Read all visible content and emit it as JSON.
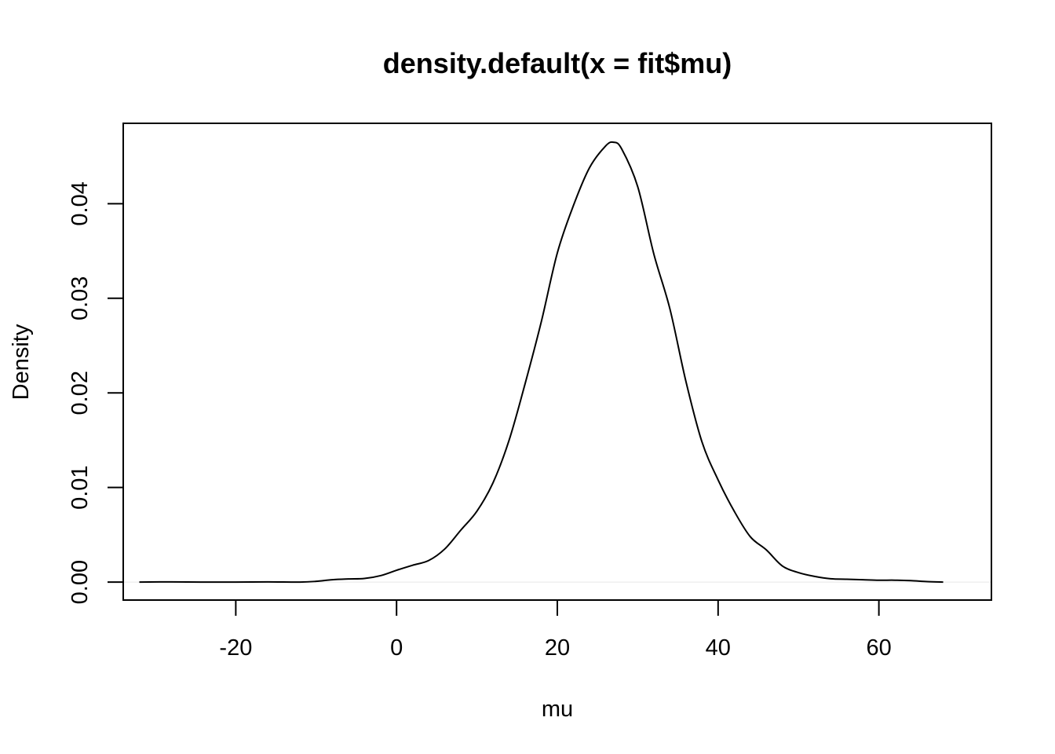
{
  "chart_data": {
    "type": "line",
    "title": "density.default(x = fit$mu)",
    "xlabel": "mu",
    "ylabel": "Density",
    "xlim": [
      -34,
      74
    ],
    "ylim": [
      -0.0019,
      0.0485
    ],
    "x_ticks": [
      -20,
      0,
      20,
      40,
      60
    ],
    "x_tick_labels": [
      "-20",
      "0",
      "20",
      "40",
      "60"
    ],
    "y_ticks": [
      0,
      0.01,
      0.02,
      0.03,
      0.04
    ],
    "y_tick_labels": [
      "0.00",
      "0.01",
      "0.02",
      "0.03",
      "0.04"
    ],
    "grid": false,
    "baseline": 0,
    "baseline_color": "#e6e6e6",
    "line_color": "#000000",
    "series": [
      {
        "x": [
          -32,
          -28,
          -24,
          -20,
          -16,
          -12,
          -10,
          -8,
          -6,
          -4,
          -2,
          0,
          2,
          4,
          6,
          8,
          10,
          12,
          14,
          16,
          18,
          20,
          22,
          24,
          26,
          27,
          28,
          30,
          32,
          34,
          36,
          38,
          40,
          42,
          44,
          46,
          48,
          50,
          52,
          54,
          56,
          58,
          60,
          62,
          64,
          66,
          68
        ],
        "y": [
          0,
          2e-05,
          0,
          0,
          2e-05,
          0,
          8e-05,
          0.00025,
          0.00033,
          0.00038,
          0.00068,
          0.00125,
          0.00178,
          0.00228,
          0.0035,
          0.0055,
          0.0075,
          0.0105,
          0.015,
          0.021,
          0.0275,
          0.0348,
          0.0398,
          0.0438,
          0.0461,
          0.0465,
          0.0458,
          0.0418,
          0.0347,
          0.0289,
          0.0212,
          0.0148,
          0.0108,
          0.0075,
          0.0048,
          0.0034,
          0.0017,
          0.001,
          0.0006,
          0.00035,
          0.0003,
          0.00025,
          0.0002,
          0.0002,
          0.00015,
          5e-05,
          0
        ]
      }
    ]
  }
}
